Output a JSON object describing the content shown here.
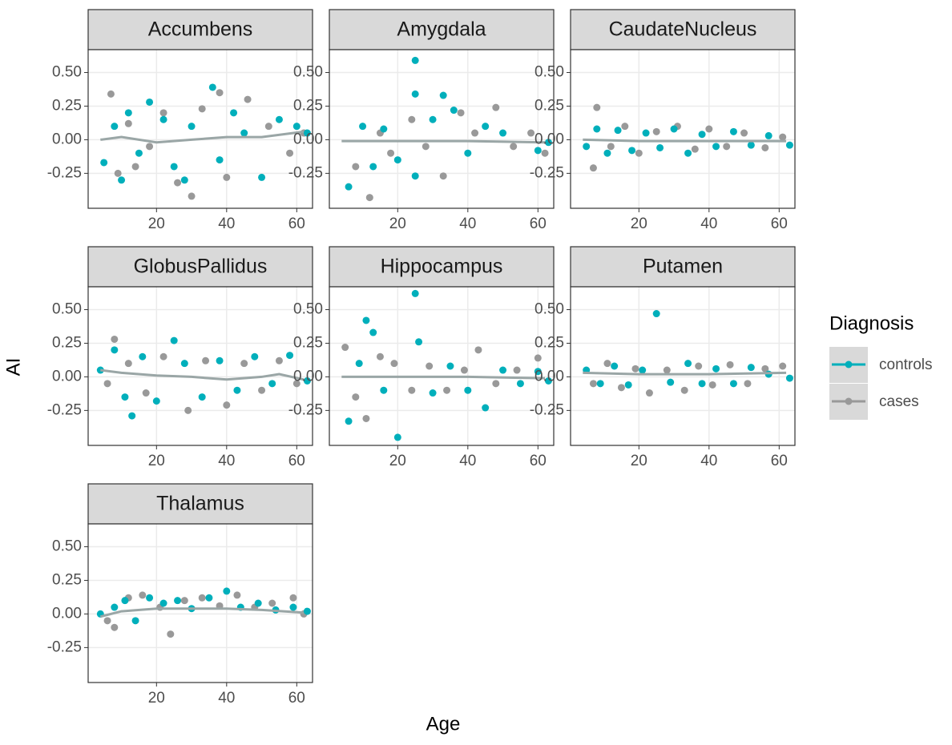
{
  "chart_data": {
    "type": "scatter",
    "xlabel": "Age",
    "ylabel": "AI",
    "legend_title": "Diagnosis",
    "xlim": [
      0.5,
      64.5
    ],
    "xticks": [
      20,
      40,
      60
    ],
    "ylim": [
      -0.51,
      0.67
    ],
    "yticks": [
      {
        "value": 0.5,
        "label": "0.50"
      },
      {
        "value": 0.25,
        "label": "0.25"
      },
      {
        "value": 0,
        "label": "0.00"
      },
      {
        "value": -0.25,
        "label": "-0.25"
      }
    ],
    "grid": true,
    "legend": "right",
    "trend_color": "#9aa6a6",
    "series": [
      {
        "name": "controls",
        "color": "#00AFBB"
      },
      {
        "name": "cases",
        "color": "#999999"
      }
    ],
    "facets": [
      {
        "title": "Accumbens",
        "series": [
          {
            "x": [
              5,
              8,
              10,
              12,
              15,
              18,
              22,
              25,
              28,
              30,
              36,
              38,
              42,
              45,
              50,
              55,
              60,
              63
            ],
            "values": [
              -0.17,
              0.1,
              -0.3,
              0.2,
              -0.1,
              0.28,
              0.15,
              -0.2,
              -0.3,
              0.1,
              0.39,
              -0.15,
              0.2,
              0.05,
              -0.28,
              0.15,
              0.1,
              0.05
            ]
          },
          {
            "x": [
              7,
              9,
              12,
              14,
              18,
              22,
              26,
              30,
              33,
              38,
              40,
              46,
              52,
              58,
              62
            ],
            "values": [
              0.34,
              -0.25,
              0.12,
              -0.2,
              -0.05,
              0.2,
              -0.32,
              -0.42,
              0.23,
              0.35,
              -0.28,
              0.3,
              0.1,
              -0.1,
              0.05
            ]
          }
        ],
        "trend": {
          "x": [
            4,
            10,
            20,
            30,
            40,
            50,
            62
          ],
          "values": [
            0,
            0.02,
            -0.02,
            0,
            0.02,
            0.02,
            0.06
          ]
        }
      },
      {
        "title": "Amygdala",
        "series": [
          {
            "x": [
              6,
              10,
              13,
              16,
              20,
              25,
              25,
              25,
              30,
              33,
              36,
              40,
              45,
              50,
              60,
              63
            ],
            "values": [
              -0.35,
              0.1,
              -0.2,
              0.08,
              -0.15,
              0.59,
              0.34,
              -0.27,
              0.15,
              0.33,
              0.22,
              -0.1,
              0.1,
              0.05,
              -0.08,
              -0.02
            ]
          },
          {
            "x": [
              8,
              12,
              15,
              18,
              24,
              28,
              33,
              38,
              42,
              48,
              53,
              58,
              62
            ],
            "values": [
              -0.2,
              -0.43,
              0.05,
              -0.1,
              0.15,
              -0.05,
              -0.27,
              0.2,
              0.05,
              0.24,
              -0.05,
              0.05,
              -0.1
            ]
          }
        ],
        "trend": {
          "x": [
            4,
            20,
            40,
            62
          ],
          "values": [
            -0.01,
            -0.01,
            -0.01,
            -0.02
          ]
        }
      },
      {
        "title": "CaudateNucleus",
        "series": [
          {
            "x": [
              5,
              8,
              11,
              14,
              18,
              22,
              26,
              30,
              34,
              38,
              42,
              47,
              52,
              57,
              63
            ],
            "values": [
              -0.05,
              0.08,
              -0.1,
              0.07,
              -0.08,
              0.05,
              -0.06,
              0.08,
              -0.1,
              0.04,
              -0.05,
              0.06,
              -0.04,
              0.03,
              -0.04
            ]
          },
          {
            "x": [
              7,
              8,
              12,
              16,
              20,
              25,
              31,
              36,
              40,
              45,
              50,
              56,
              61
            ],
            "values": [
              -0.21,
              0.24,
              -0.05,
              0.1,
              -0.1,
              0.06,
              0.1,
              -0.07,
              0.08,
              -0.05,
              0.05,
              -0.06,
              0.02
            ]
          }
        ],
        "trend": {
          "x": [
            4,
            20,
            40,
            62
          ],
          "values": [
            0,
            -0.01,
            -0.01,
            -0.01
          ]
        }
      },
      {
        "title": "GlobusPallidus",
        "series": [
          {
            "x": [
              4,
              8,
              11,
              13,
              16,
              20,
              25,
              28,
              33,
              38,
              43,
              48,
              53,
              58,
              63
            ],
            "values": [
              0.05,
              0.2,
              -0.15,
              -0.29,
              0.15,
              -0.18,
              0.27,
              0.1,
              -0.15,
              0.12,
              -0.1,
              0.15,
              -0.05,
              0.16,
              -0.03
            ]
          },
          {
            "x": [
              6,
              8,
              12,
              17,
              22,
              29,
              34,
              40,
              45,
              50,
              55,
              60
            ],
            "values": [
              -0.05,
              0.28,
              0.1,
              -0.12,
              0.15,
              -0.25,
              0.12,
              -0.21,
              0.1,
              -0.1,
              0.12,
              -0.05
            ]
          }
        ],
        "trend": {
          "x": [
            4,
            10,
            20,
            30,
            40,
            50,
            55,
            62
          ],
          "values": [
            0.05,
            0.03,
            0.01,
            0,
            -0.02,
            0,
            0.02,
            -0.02
          ]
        }
      },
      {
        "title": "Hippocampus",
        "series": [
          {
            "x": [
              6,
              9,
              11,
              13,
              16,
              20,
              25,
              26,
              30,
              35,
              40,
              45,
              50,
              55,
              60,
              63
            ],
            "values": [
              -0.33,
              0.1,
              0.42,
              0.33,
              -0.1,
              -0.45,
              0.62,
              0.26,
              -0.12,
              0.08,
              -0.1,
              -0.23,
              0.05,
              -0.05,
              0.04,
              -0.03
            ]
          },
          {
            "x": [
              5,
              8,
              11,
              15,
              19,
              24,
              29,
              34,
              39,
              43,
              48,
              54,
              60
            ],
            "values": [
              0.22,
              -0.15,
              -0.31,
              0.15,
              0.1,
              -0.1,
              0.08,
              -0.1,
              0.05,
              0.2,
              -0.05,
              0.05,
              0.14
            ]
          }
        ],
        "trend": {
          "x": [
            4,
            20,
            40,
            62
          ],
          "values": [
            0,
            0,
            0,
            -0.01
          ]
        }
      },
      {
        "title": "Putamen",
        "series": [
          {
            "x": [
              5,
              9,
              13,
              17,
              21,
              25,
              29,
              34,
              38,
              42,
              47,
              52,
              57,
              63
            ],
            "values": [
              0.05,
              -0.05,
              0.08,
              -0.06,
              0.05,
              0.47,
              -0.04,
              0.1,
              -0.05,
              0.06,
              -0.05,
              0.07,
              0.02,
              -0.01
            ]
          },
          {
            "x": [
              7,
              11,
              15,
              19,
              23,
              28,
              33,
              37,
              41,
              46,
              51,
              56,
              61
            ],
            "values": [
              -0.05,
              0.1,
              -0.08,
              0.06,
              -0.12,
              0.05,
              -0.1,
              0.08,
              -0.06,
              0.09,
              -0.05,
              0.06,
              0.08
            ]
          }
        ],
        "trend": {
          "x": [
            4,
            20,
            40,
            62
          ],
          "values": [
            0.03,
            0.02,
            0.02,
            0.03
          ]
        }
      },
      {
        "title": "Thalamus",
        "series": [
          {
            "x": [
              4,
              8,
              11,
              14,
              18,
              22,
              26,
              30,
              35,
              40,
              44,
              49,
              54,
              59,
              63
            ],
            "values": [
              0,
              0.05,
              0.1,
              -0.05,
              0.12,
              0.08,
              0.1,
              0.04,
              0.12,
              0.17,
              0.05,
              0.08,
              0.03,
              0.05,
              0.02
            ]
          },
          {
            "x": [
              6,
              8,
              12,
              16,
              21,
              24,
              28,
              33,
              38,
              43,
              48,
              53,
              59,
              62
            ],
            "values": [
              -0.05,
              -0.1,
              0.12,
              0.14,
              0.05,
              -0.15,
              0.1,
              0.12,
              0.06,
              0.14,
              0.05,
              0.08,
              0.12,
              0
            ]
          }
        ],
        "trend": {
          "x": [
            4,
            10,
            20,
            30,
            40,
            50,
            62
          ],
          "values": [
            -0.02,
            0.02,
            0.04,
            0.04,
            0.04,
            0.03,
            0.01
          ]
        }
      }
    ]
  }
}
